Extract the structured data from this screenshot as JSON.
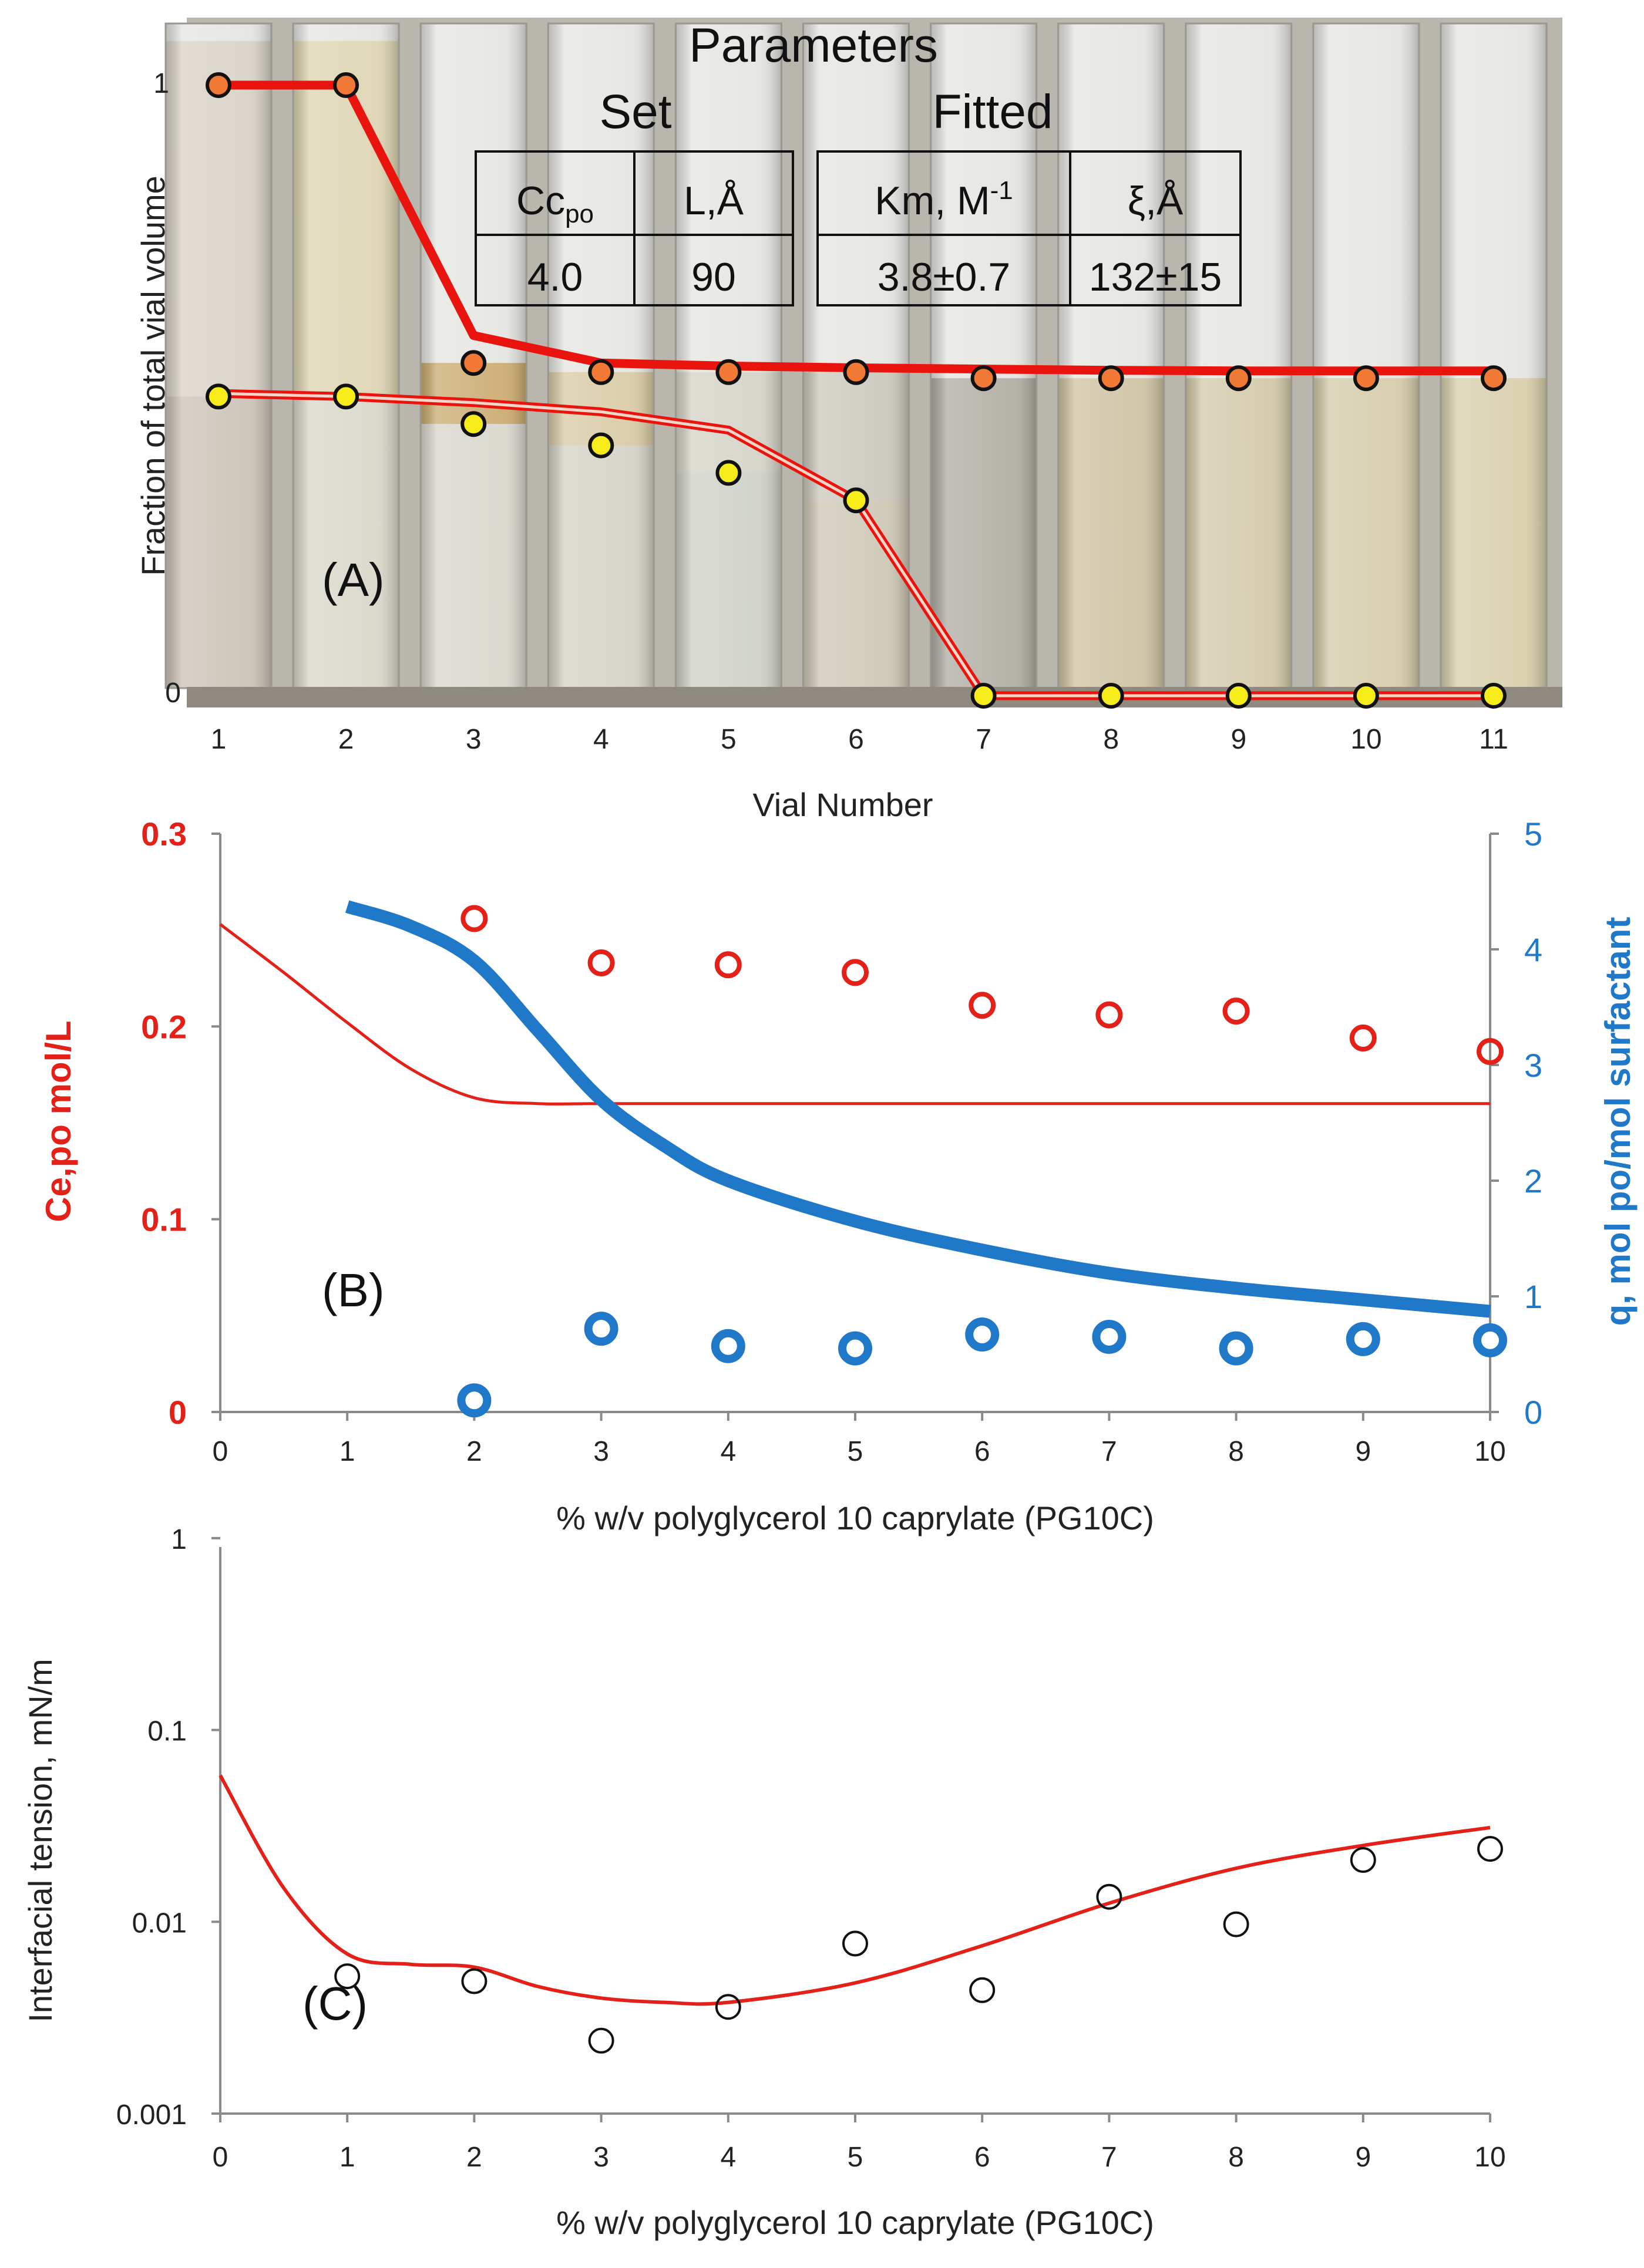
{
  "chart_data": [
    {
      "panel": "A",
      "type": "line",
      "panel_label": "(A)",
      "background": "photograph of 11 vials showing phase boundaries",
      "xlabel": "Vial Number",
      "ylabel": "Fraction of total vial volume",
      "x": [
        1,
        2,
        3,
        4,
        5,
        6,
        7,
        8,
        9,
        10,
        11
      ],
      "x_tick_labels": [
        "1",
        "2",
        "3",
        "4",
        "5",
        "6",
        "7",
        "8",
        "9",
        "10",
        "11"
      ],
      "y_tick_labels": [
        "0",
        "1"
      ],
      "ylim": [
        0,
        1
      ],
      "series": [
        {
          "name": "upper boundary fit",
          "style": "thick red line",
          "x": [
            1,
            2,
            3,
            4,
            5,
            6,
            7,
            8,
            9,
            10,
            11
          ],
          "values": [
            1.0,
            1.0,
            0.59,
            0.545,
            0.54,
            0.537,
            0.535,
            0.533,
            0.532,
            0.532,
            0.532
          ]
        },
        {
          "name": "lower boundary fit",
          "style": "double red line",
          "x": [
            1,
            2,
            3,
            4,
            5,
            6,
            7,
            8,
            9,
            10,
            11
          ],
          "values": [
            0.495,
            0.49,
            0.48,
            0.465,
            0.435,
            0.32,
            0.0,
            0.0,
            0.0,
            0.0,
            0.0
          ]
        },
        {
          "name": "upper boundary measured",
          "style": "orange circles",
          "x": [
            1,
            2,
            3,
            4,
            5,
            6,
            7,
            8,
            9,
            10,
            11
          ],
          "values": [
            1.0,
            1.0,
            0.545,
            0.53,
            0.53,
            0.53,
            0.52,
            0.52,
            0.52,
            0.52,
            0.52
          ]
        },
        {
          "name": "lower boundary measured",
          "style": "yellow circles",
          "x": [
            1,
            2,
            3,
            4,
            5,
            6,
            7,
            8,
            9,
            10,
            11
          ],
          "values": [
            0.49,
            0.49,
            0.445,
            0.41,
            0.365,
            0.32,
            0.0,
            0.0,
            0.0,
            0.0,
            0.0
          ]
        }
      ],
      "table": {
        "title": "Parameters",
        "groups": [
          "Set",
          "Fitted"
        ],
        "headers": [
          {
            "base": "Cc",
            "sub": "po",
            "sup": ""
          },
          {
            "base": "L,Å",
            "sub": "",
            "sup": ""
          },
          {
            "base": "Km, M",
            "sub": "",
            "sup": "-1"
          },
          {
            "base": "ξ,Å",
            "sub": "",
            "sup": ""
          }
        ],
        "values": [
          "4.0",
          "90",
          "3.8±0.7",
          "132±15"
        ]
      }
    },
    {
      "panel": "B",
      "type": "scatter",
      "panel_label": "(B)",
      "xlabel": "% w/v   polyglycerol 10 caprylate (PG10C)",
      "ylabel": "Ce,po  mol/L",
      "ylabel_right": "q, mol po/mol surfactant",
      "xlim": [
        0,
        10
      ],
      "ylim": [
        0,
        0.3
      ],
      "ylim_right": [
        0,
        5
      ],
      "x_ticks": [
        0,
        1,
        2,
        3,
        4,
        5,
        6,
        7,
        8,
        9,
        10
      ],
      "x_tick_labels": [
        "0",
        "1",
        "2",
        "3",
        "4",
        "5",
        "6",
        "7",
        "8",
        "9",
        "10"
      ],
      "y_ticks": [
        0,
        0.1,
        0.2,
        0.3
      ],
      "y_tick_labels": [
        "0",
        "0.1",
        "0.2",
        "0.3"
      ],
      "y_ticks_right": [
        0,
        1,
        2,
        3,
        4,
        5
      ],
      "y_tick_labels_right": [
        "0",
        "1",
        "2",
        "3",
        "4",
        "5"
      ],
      "series": [
        {
          "name": "Ce,po fit",
          "axis": "left",
          "style": "thin red line",
          "x": [
            0,
            0.5,
            1,
            1.5,
            2,
            2.5,
            3,
            4,
            5,
            6,
            7,
            8,
            9,
            10
          ],
          "values": [
            0.253,
            0.228,
            0.202,
            0.178,
            0.163,
            0.16,
            0.16,
            0.16,
            0.16,
            0.16,
            0.16,
            0.16,
            0.16,
            0.16
          ]
        },
        {
          "name": "Ce,po measured",
          "axis": "left",
          "style": "red open circles",
          "x": [
            2,
            3,
            4,
            5,
            6,
            7,
            8,
            9,
            10
          ],
          "values": [
            0.256,
            0.233,
            0.232,
            0.228,
            0.211,
            0.206,
            0.208,
            0.194,
            0.187
          ]
        },
        {
          "name": "q fit",
          "axis": "right",
          "style": "thick blue line",
          "x": [
            1,
            1.5,
            2,
            2.5,
            3,
            3.5,
            4,
            5,
            6,
            7,
            8,
            9,
            10
          ],
          "values": [
            4.37,
            4.2,
            3.9,
            3.3,
            2.7,
            2.3,
            2.0,
            1.65,
            1.4,
            1.2,
            1.07,
            0.97,
            0.87
          ]
        },
        {
          "name": "q measured",
          "axis": "right",
          "style": "blue open circles",
          "x": [
            2,
            3,
            4,
            5,
            6,
            7,
            8,
            9,
            10
          ],
          "values": [
            0.1,
            0.72,
            0.57,
            0.55,
            0.67,
            0.65,
            0.55,
            0.63,
            0.62
          ]
        }
      ]
    },
    {
      "panel": "C",
      "type": "scatter",
      "panel_label": "(C)",
      "xlabel": "% w/v   polyglycerol 10 caprylate (PG10C)",
      "ylabel": "Interfacial tension, mN/m",
      "yscale": "log",
      "xlim": [
        0,
        10
      ],
      "ylim": [
        0.001,
        1
      ],
      "x_ticks": [
        0,
        1,
        2,
        3,
        4,
        5,
        6,
        7,
        8,
        9,
        10
      ],
      "x_tick_labels": [
        "0",
        "1",
        "2",
        "3",
        "4",
        "5",
        "6",
        "7",
        "8",
        "9",
        "10"
      ],
      "y_ticks": [
        0.001,
        0.01,
        0.1,
        1
      ],
      "y_tick_labels": [
        "0.001",
        "0.01",
        "0.1",
        "1"
      ],
      "series": [
        {
          "name": "IFT fit",
          "style": "red line",
          "x": [
            0,
            0.5,
            1,
            1.5,
            2,
            2.5,
            3,
            3.5,
            4,
            5,
            6,
            7,
            8,
            9,
            10
          ],
          "values": [
            0.058,
            0.015,
            0.0068,
            0.006,
            0.0058,
            0.0046,
            0.004,
            0.0038,
            0.0038,
            0.0048,
            0.0075,
            0.0125,
            0.019,
            0.025,
            0.031
          ]
        },
        {
          "name": "IFT measured",
          "style": "black open circles",
          "x": [
            1,
            2,
            3,
            4,
            5,
            6,
            7,
            8,
            9,
            10
          ],
          "values": [
            0.0052,
            0.0049,
            0.0024,
            0.0036,
            0.0077,
            0.0044,
            0.0135,
            0.0097,
            0.021,
            0.024
          ]
        }
      ]
    }
  ]
}
